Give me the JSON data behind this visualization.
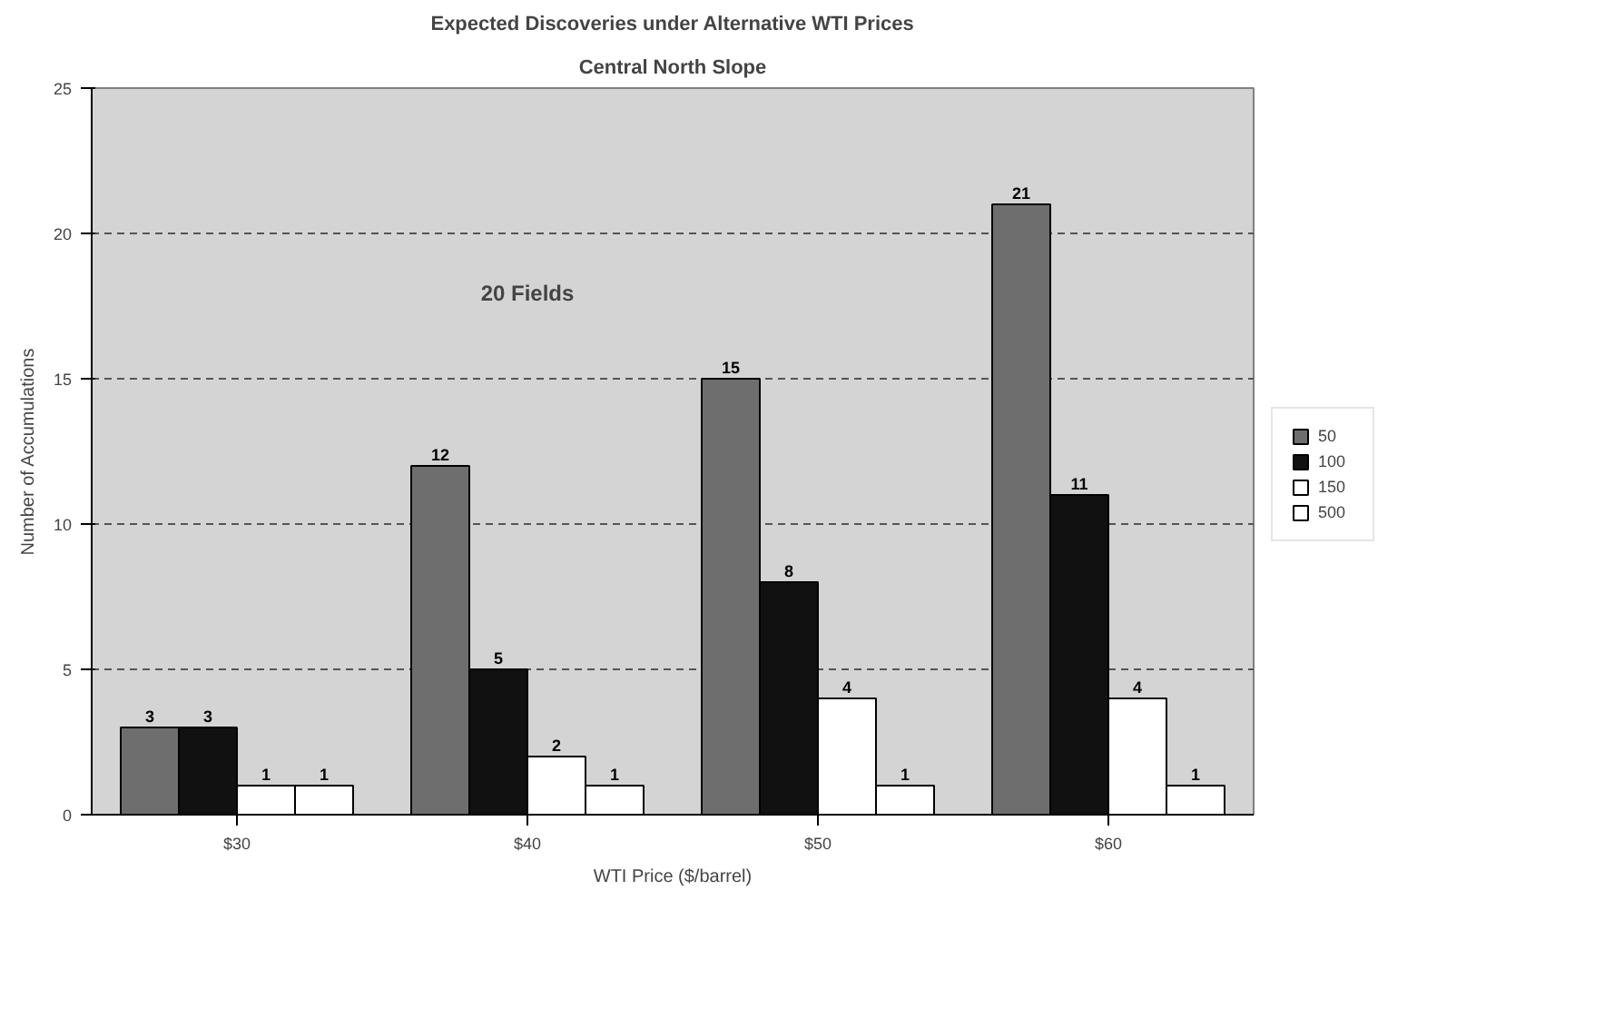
{
  "chart_data": {
    "type": "bar",
    "title": "Expected Discoveries under Alternative WTI Prices",
    "subtitle": "Central North Slope",
    "xlabel": "WTI Price ($/barrel)",
    "ylabel": "Number of Accumulations",
    "categories": [
      "$30",
      "$40",
      "$50",
      "$60"
    ],
    "series": [
      {
        "name": "50",
        "color": "#6e6e6e",
        "values": [
          3,
          12,
          15,
          21
        ]
      },
      {
        "name": "100",
        "color": "#111111",
        "values": [
          3,
          5,
          8,
          11
        ]
      },
      {
        "name": "150",
        "color": "#ffffff",
        "values": [
          1,
          2,
          4,
          4
        ]
      },
      {
        "name": "500",
        "color": "#ffffff",
        "values": [
          1,
          1,
          1,
          1
        ]
      }
    ],
    "ylim": [
      0,
      25
    ],
    "yticks": [
      0,
      5,
      10,
      15,
      20,
      25
    ],
    "grid": "y",
    "legend": "right",
    "data_labels": true,
    "annotations": [
      "20 Fields"
    ]
  }
}
